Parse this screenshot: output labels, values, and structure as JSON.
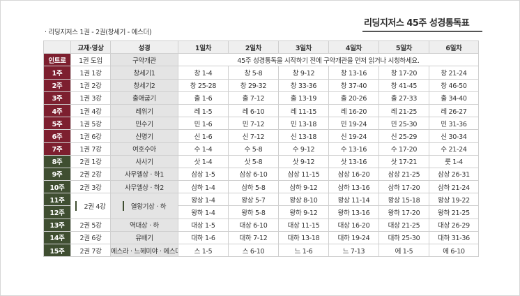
{
  "title": "리딩지저스 45주 성경통독표",
  "subtitle": "· 리딩지저스 1권 - 2권(창세기 - 에스더)",
  "header": [
    "",
    "교재·영상",
    "성경",
    "1일차",
    "2일차",
    "3일차",
    "4일차",
    "5일차",
    "6일차"
  ],
  "intro": {
    "week": "인트로",
    "material": "1권 도입",
    "book": "구약개관",
    "note": "45주 성경통독을 시작하기 전에 구약개관을 먼저 읽거나 시청하세요."
  },
  "rows": [
    {
      "week": "1주",
      "material": "1권 1강",
      "book": "창세기1",
      "days": [
        "창 1-4",
        "창 5-8",
        "창 9-12",
        "창 13-16",
        "창 17-20",
        "창 21-24"
      ]
    },
    {
      "week": "2주",
      "material": "1권 2강",
      "book": "창세기2",
      "days": [
        "창 25-28",
        "창 29-32",
        "창 33-36",
        "창 37-40",
        "창 41-45",
        "창 46-50"
      ]
    },
    {
      "week": "3주",
      "material": "1권 3강",
      "book": "출애굽기",
      "days": [
        "출 1-6",
        "출 7-12",
        "출 13-19",
        "출 20-26",
        "출 27-33",
        "출 34-40"
      ]
    },
    {
      "week": "4주",
      "material": "1권 4강",
      "book": "레위기",
      "days": [
        "레 1-5",
        "레 6-10",
        "레 11-15",
        "레 16-20",
        "레 21-25",
        "레 26-27"
      ]
    },
    {
      "week": "5주",
      "material": "1권 5강",
      "book": "민수기",
      "days": [
        "민 1-6",
        "민 7-12",
        "민 13-18",
        "민 19-24",
        "민 25-30",
        "민 31-36"
      ]
    },
    {
      "week": "6주",
      "material": "1권 6강",
      "book": "신명기",
      "days": [
        "신 1-6",
        "신 7-12",
        "신 13-18",
        "신 19-24",
        "신 25-29",
        "신 30-34"
      ]
    },
    {
      "week": "7주",
      "material": "1권 7강",
      "book": "여호수아",
      "days": [
        "수 1-4",
        "수 5-8",
        "수 9-12",
        "수 13-16",
        "수 17-20",
        "수 21-24"
      ]
    },
    {
      "week": "8주",
      "material": "2권 1강",
      "book": "사사기",
      "days": [
        "삿 1-4",
        "삿 5-8",
        "삿 9-12",
        "삿 13-16",
        "삿 17-21",
        "룻 1-4"
      ]
    },
    {
      "week": "9주",
      "material": "2권 2강",
      "book": "사무엘상 · 하1",
      "days": [
        "삼상 1-5",
        "삼상 6-10",
        "삼상 11-15",
        "삼상 16-20",
        "삼상 21-25",
        "삼상 26-31"
      ]
    },
    {
      "week": "10주",
      "material": "2권 3강",
      "book": "사무엘상 · 하2",
      "days": [
        "삼하 1-4",
        "삼하 5-8",
        "삼하 9-12",
        "삼하 13-16",
        "삼하 17-20",
        "삼하 21-24"
      ]
    },
    {
      "week": "11주",
      "material": "2권 4강",
      "book": "열왕기상 · 하",
      "days": [
        "왕상 1-4",
        "왕상 5-7",
        "왕상 8-10",
        "왕상 11-14",
        "왕상 15-18",
        "왕상 19-22"
      ]
    },
    {
      "week": "12주",
      "days": [
        "왕하 1-4",
        "왕하 5-8",
        "왕하 9-12",
        "왕하 13-16",
        "왕하 17-20",
        "왕하 21-25"
      ]
    },
    {
      "week": "13주",
      "material": "2권 5강",
      "book": "역대상 · 하",
      "days": [
        "대상 1-5",
        "대상 6-10",
        "대상 11-15",
        "대상 16-20",
        "대상 21-25",
        "대상 26-29"
      ]
    },
    {
      "week": "14주",
      "material": "2권 6강",
      "book": "유배기",
      "days": [
        "대하 1-6",
        "대하 7-12",
        "대하 13-18",
        "대하 19-24",
        "대하 25-30",
        "대하 31-36"
      ]
    },
    {
      "week": "15주",
      "material": "2권 7강",
      "book": "에스라 · 느헤미야 · 에스더",
      "days": [
        "스 1-5",
        "스 6-10",
        "느 1-6",
        "느 7-13",
        "에 1-5",
        "에 6-10"
      ]
    }
  ],
  "colors": {
    "week_book1": "#7d1f2f",
    "week_book2": "#3f4e31",
    "header_bg": "#efefef",
    "book_bg": "#e4e4e4"
  }
}
